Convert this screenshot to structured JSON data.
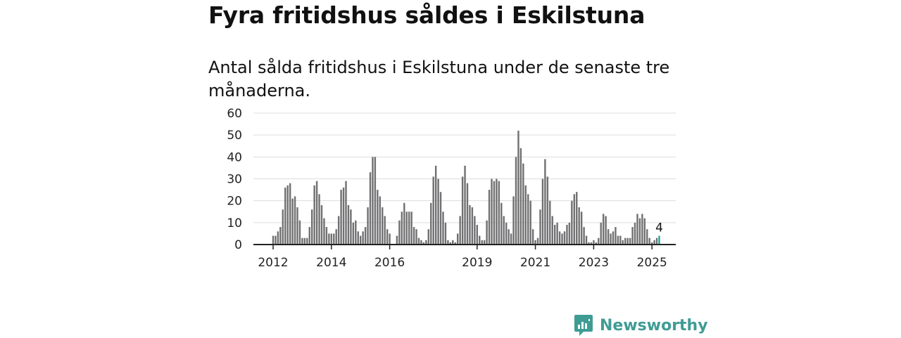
{
  "header": {
    "title": "Fyra fritidshus såldes i Eskilstuna",
    "subtitle": "Antal sålda fritidshus i Eskilstuna under de senaste tre månaderna."
  },
  "brand": {
    "name": "Newsworthy",
    "color": "#3f9c94"
  },
  "colors": {
    "bar": "#707072",
    "highlight": "#2aa198",
    "grid": "#dddddd",
    "axis": "#222222"
  },
  "chart_data": {
    "type": "bar",
    "title": "",
    "xlabel": "",
    "ylabel": "",
    "ylim": [
      0,
      60
    ],
    "yticks": [
      "0",
      "10",
      "20",
      "30",
      "40",
      "50",
      "60"
    ],
    "xticks": [
      {
        "label": "2012",
        "index": 0
      },
      {
        "label": "2014",
        "index": 24
      },
      {
        "label": "2016",
        "index": 48
      },
      {
        "label": "2019",
        "index": 84
      },
      {
        "label": "2021",
        "index": 108
      },
      {
        "label": "2023",
        "index": 132
      },
      {
        "label": "2025",
        "index": 156
      }
    ],
    "grid": true,
    "legend": "none",
    "start": "2012-01",
    "end": "2025-04",
    "highlight_label": "4",
    "values": [
      4,
      4,
      6,
      8,
      16,
      26,
      27,
      28,
      21,
      22,
      17,
      11,
      3,
      3,
      3,
      8,
      16,
      27,
      29,
      23,
      18,
      12,
      8,
      5,
      5,
      5,
      7,
      13,
      25,
      26,
      29,
      18,
      16,
      10,
      11,
      6,
      4,
      6,
      8,
      17,
      33,
      40,
      40,
      25,
      22,
      17,
      13,
      7,
      5,
      0,
      0,
      4,
      11,
      15,
      19,
      15,
      15,
      15,
      8,
      7,
      3,
      2,
      1,
      2,
      7,
      19,
      31,
      36,
      30,
      24,
      15,
      10,
      2,
      1,
      2,
      1,
      5,
      13,
      31,
      36,
      28,
      18,
      17,
      13,
      9,
      4,
      2,
      2,
      11,
      25,
      30,
      29,
      30,
      29,
      19,
      13,
      10,
      7,
      5,
      22,
      40,
      52,
      44,
      37,
      27,
      23,
      20,
      7,
      2,
      3,
      16,
      30,
      39,
      31,
      20,
      13,
      9,
      10,
      6,
      5,
      6,
      9,
      10,
      20,
      23,
      24,
      17,
      15,
      8,
      4,
      1,
      1,
      2,
      1,
      3,
      10,
      14,
      13,
      7,
      5,
      6,
      8,
      4,
      4,
      2,
      3,
      3,
      3,
      8,
      10,
      14,
      12,
      14,
      12,
      7,
      3,
      1,
      2,
      3,
      4
    ]
  }
}
